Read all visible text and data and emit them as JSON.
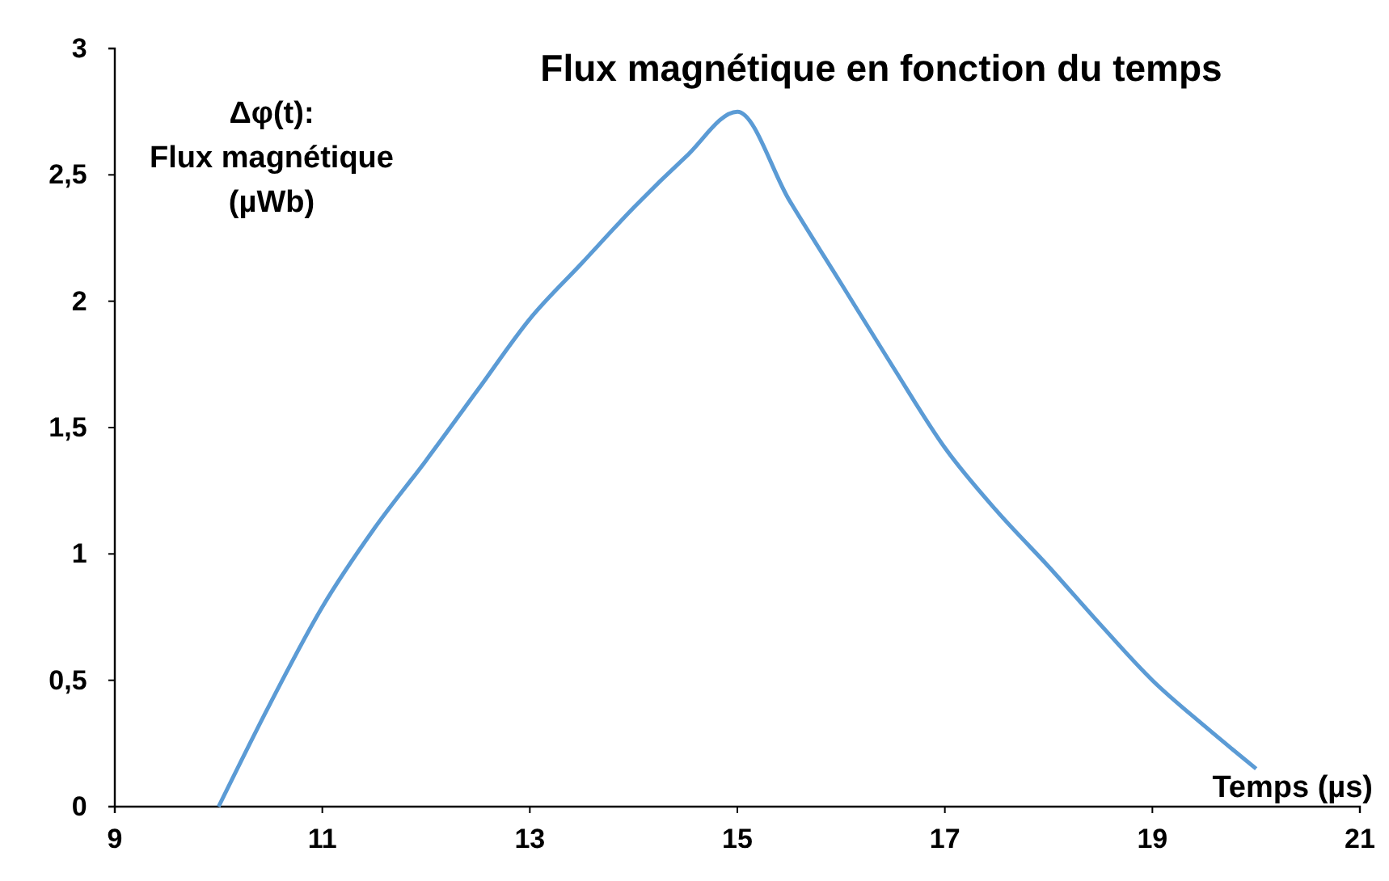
{
  "chart_data": {
    "type": "line",
    "title": "Flux magnétique en fonction du temps",
    "xlabel": "Temps (µs)",
    "ylabel": "Δφ(t):\nFlux magnétique\n(µWb)",
    "x": [
      10,
      10.5,
      11,
      11.5,
      12,
      12.5,
      13,
      13.5,
      14,
      14.5,
      15,
      15.5,
      16,
      16.5,
      17,
      17.5,
      18,
      18.5,
      19,
      19.5,
      20
    ],
    "series": [
      {
        "color": "#5b9bd5",
        "values": [
          0,
          0.41,
          0.79,
          1.1,
          1.37,
          1.65,
          1.93,
          2.15,
          2.37,
          2.57,
          2.75,
          2.4,
          2.07,
          1.74,
          1.42,
          1.17,
          0.95,
          0.72,
          0.5,
          0.32,
          0.15
        ]
      }
    ],
    "xlim": [
      9,
      21
    ],
    "xticks": [
      9,
      11,
      13,
      15,
      17,
      19,
      21
    ],
    "ylim": [
      0,
      3
    ],
    "yticks": [
      0,
      {
        "value": 0.5,
        "label": "0,5"
      },
      1,
      {
        "value": 1.5,
        "label": "1,5"
      },
      2,
      {
        "value": 2.5,
        "label": "2,5"
      },
      3
    ],
    "marker": "none",
    "line_style": "solid"
  }
}
